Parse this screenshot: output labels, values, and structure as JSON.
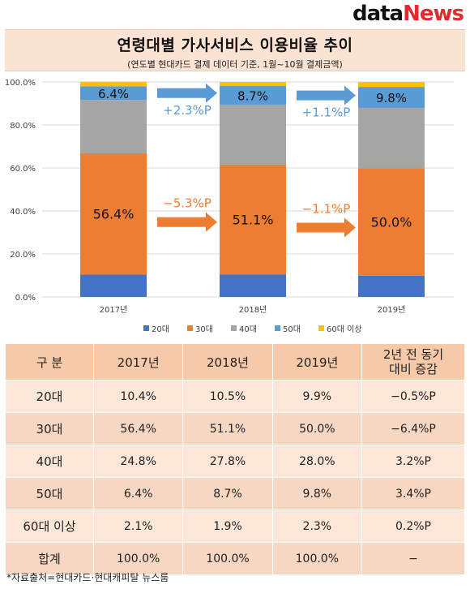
{
  "logo": {
    "part1": "data",
    "part2": "News"
  },
  "title": "연령대별 가사서비스 이용비율 추이",
  "subtitle": "(연도별 현대카드 결제 데이터 기준, 1월~10월 결제금액)",
  "chart_data": {
    "type": "bar",
    "stacked": true,
    "categories": [
      "2017년",
      "2018년",
      "2019년"
    ],
    "ylim": [
      0,
      100
    ],
    "ytick_labels": [
      "0.0%",
      "20.0%",
      "40.0%",
      "60.0%",
      "80.0%",
      "100.0%"
    ],
    "grid": true,
    "legend_position": "bottom",
    "series": [
      {
        "name": "20대",
        "values": [
          10.4,
          10.5,
          9.9
        ],
        "color": "#4472c4"
      },
      {
        "name": "30대",
        "values": [
          56.4,
          51.1,
          50.0
        ],
        "color": "#ed7d31"
      },
      {
        "name": "40대",
        "values": [
          24.8,
          27.8,
          28.0
        ],
        "color": "#a5a5a5"
      },
      {
        "name": "50대",
        "values": [
          6.4,
          8.7,
          9.8
        ],
        "color": "#5b9bd5"
      },
      {
        "name": "60대 이상",
        "values": [
          2.1,
          1.9,
          2.3
        ],
        "color": "#ffc000"
      }
    ],
    "bar_labels": [
      {
        "series": "30대",
        "labels": [
          "56.4%",
          "51.1%",
          "50.0%"
        ]
      },
      {
        "series": "50대",
        "labels": [
          "6.4%",
          "8.7%",
          "9.8%"
        ]
      }
    ],
    "annotations": [
      {
        "text": "+2.3%P",
        "series": "50대",
        "between": [
          "2017년",
          "2018년"
        ],
        "color": "#5b9bd5"
      },
      {
        "text": "+1.1%P",
        "series": "50대",
        "between": [
          "2018년",
          "2019년"
        ],
        "color": "#5b9bd5"
      },
      {
        "text": "−5.3%P",
        "series": "30대",
        "between": [
          "2017년",
          "2018년"
        ],
        "color": "#ed7d31"
      },
      {
        "text": "−1.1%P",
        "series": "30대",
        "between": [
          "2018년",
          "2019년"
        ],
        "color": "#ed7d31"
      }
    ]
  },
  "table": {
    "headers": [
      "구 분",
      "2017년",
      "2018년",
      "2019년",
      "2년 전 동기\n대비 증감"
    ],
    "rows": [
      [
        "20대",
        "10.4%",
        "10.5%",
        "9.9%",
        "−0.5%P"
      ],
      [
        "30대",
        "56.4%",
        "51.1%",
        "50.0%",
        "−6.4%P"
      ],
      [
        "40대",
        "24.8%",
        "27.8%",
        "28.0%",
        "3.2%P"
      ],
      [
        "50대",
        "6.4%",
        "8.7%",
        "9.8%",
        "3.4%P"
      ],
      [
        "60대 이상",
        "2.1%",
        "1.9%",
        "2.3%",
        "0.2%P"
      ],
      [
        "합계",
        "100.0%",
        "100.0%",
        "100.0%",
        "−"
      ]
    ]
  },
  "source": "*자료출처=현대카드·현대캐피탈 뉴스룸"
}
